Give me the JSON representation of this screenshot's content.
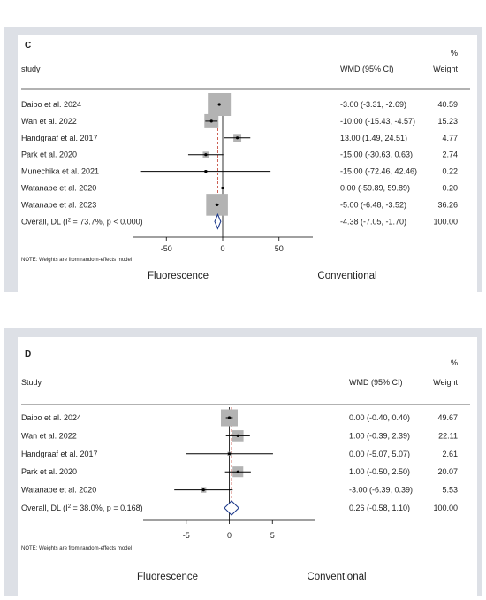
{
  "chart_data": [
    {
      "type": "forest",
      "panel_label": "C",
      "header": {
        "study": "study",
        "effect": "WMD (95% CI)",
        "percent": "%",
        "weight": "Weight"
      },
      "xlim": [
        -80,
        80
      ],
      "xticks": [
        -50,
        0,
        50
      ],
      "xtick_labels": [
        "-50",
        "0",
        "50"
      ],
      "overall_line": -4.38,
      "studies": [
        {
          "name": "Daibo et al. 2024",
          "est": -3.0,
          "lo": -3.31,
          "hi": -2.69,
          "ci_text": "-3.00 (-3.31, -2.69)",
          "weight": 40.59,
          "weight_text": "40.59"
        },
        {
          "name": "Wan et al. 2022",
          "est": -10.0,
          "lo": -15.43,
          "hi": -4.57,
          "ci_text": "-10.00 (-15.43, -4.57)",
          "weight": 15.23,
          "weight_text": "15.23"
        },
        {
          "name": "Handgraaf et al. 2017",
          "est": 13.0,
          "lo": 1.49,
          "hi": 24.51,
          "ci_text": "13.00 (1.49, 24.51)",
          "weight": 4.77,
          "weight_text": "4.77"
        },
        {
          "name": "Park et al. 2020",
          "est": -15.0,
          "lo": -30.63,
          "hi": 0.63,
          "ci_text": "-15.00 (-30.63, 0.63)",
          "weight": 2.74,
          "weight_text": "2.74"
        },
        {
          "name": "Munechika et al. 2021",
          "est": -15.0,
          "lo": -72.46,
          "hi": 42.46,
          "ci_text": "-15.00 (-72.46, 42.46)",
          "weight": 0.22,
          "weight_text": "0.22"
        },
        {
          "name": "Watanabe et al. 2020",
          "est": 0.0,
          "lo": -59.89,
          "hi": 59.89,
          "ci_text": "0.00 (-59.89, 59.89)",
          "weight": 0.2,
          "weight_text": "0.20"
        },
        {
          "name": "Watanabe et al. 2023",
          "est": -5.0,
          "lo": -6.48,
          "hi": -3.52,
          "ci_text": "-5.00 (-6.48, -3.52)",
          "weight": 36.26,
          "weight_text": "36.26"
        }
      ],
      "overall": {
        "name_prefix": "Overall, DL (I",
        "name_sup": "2",
        "name_suffix": " = 73.7%, p < 0.000)",
        "est": -4.38,
        "lo": -7.05,
        "hi": -1.7,
        "ci_text": "-4.38 (-7.05, -1.70)",
        "weight_text": "100.00"
      },
      "note": "NOTE: Weights are from random-effects model",
      "left_label": "Fluorescence",
      "right_label": "Conventional"
    },
    {
      "type": "forest",
      "panel_label": "D",
      "header": {
        "study": "Study",
        "effect": "WMD (95% CI)",
        "percent": "%",
        "weight": "Weight"
      },
      "xlim": [
        -10,
        10
      ],
      "xticks": [
        -5,
        0,
        5
      ],
      "xtick_labels": [
        "-5",
        "0",
        "5"
      ],
      "overall_line": 0.26,
      "studies": [
        {
          "name": "Daibo et al. 2024",
          "est": 0.0,
          "lo": -0.4,
          "hi": 0.4,
          "ci_text": "0.00 (-0.40, 0.40)",
          "weight": 49.67,
          "weight_text": "49.67"
        },
        {
          "name": "Wan et al. 2022",
          "est": 1.0,
          "lo": -0.39,
          "hi": 2.39,
          "ci_text": "1.00 (-0.39, 2.39)",
          "weight": 22.11,
          "weight_text": "22.11"
        },
        {
          "name": "Handgraaf et al. 2017",
          "est": 0.0,
          "lo": -5.07,
          "hi": 5.07,
          "ci_text": "0.00 (-5.07, 5.07)",
          "weight": 2.61,
          "weight_text": "2.61"
        },
        {
          "name": "Park et al. 2020",
          "est": 1.0,
          "lo": -0.5,
          "hi": 2.5,
          "ci_text": "1.00 (-0.50, 2.50)",
          "weight": 20.07,
          "weight_text": "20.07"
        },
        {
          "name": "Watanabe et al. 2020",
          "est": -3.0,
          "lo": -6.39,
          "hi": 0.39,
          "ci_text": "-3.00 (-6.39, 0.39)",
          "weight": 5.53,
          "weight_text": "5.53"
        }
      ],
      "overall": {
        "name_prefix": "Overall, DL (I",
        "name_sup": "2",
        "name_suffix": " = 38.0%, p = 0.168)",
        "est": 0.26,
        "lo": -0.58,
        "hi": 1.1,
        "ci_text": "0.26 (-0.58, 1.10)",
        "weight_text": "100.00"
      },
      "note": "NOTE: Weights are from random-effects model",
      "left_label": "Fluorescence",
      "right_label": "Conventional"
    }
  ]
}
